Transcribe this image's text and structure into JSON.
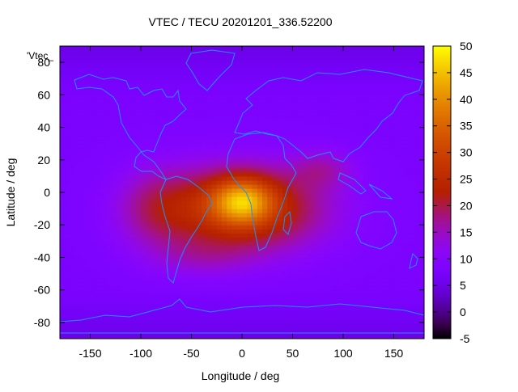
{
  "chart_data": {
    "type": "heatmap",
    "title": "VTEC / TECU 20201201_336.52200",
    "xlabel": "Longitude / deg",
    "ylabel": "Latitude / deg",
    "series_key": "'Vtec_",
    "xlim": [
      -180,
      180
    ],
    "ylim": [
      -90,
      90
    ],
    "x_ticks": [
      -150,
      -100,
      -50,
      0,
      50,
      100,
      150
    ],
    "y_ticks": [
      80,
      60,
      40,
      20,
      0,
      -20,
      -40,
      -60,
      -80
    ],
    "colorbar": {
      "range": [
        -5,
        50
      ],
      "ticks": [
        50,
        45,
        40,
        35,
        30,
        25,
        20,
        15,
        10,
        5,
        0,
        -5
      ],
      "colormap": "gnuplot-pm3d-default (black-blue-purple-red-orange-yellow)"
    },
    "field_summary": {
      "background_level": 8,
      "peak": {
        "lon": 0,
        "lat": -5,
        "value": 50
      },
      "enhanced_region": {
        "lon_range": [
          -120,
          130
        ],
        "lat_range": [
          -55,
          25
        ],
        "typical_value": 30
      },
      "polar_values": 5
    }
  },
  "colors": {
    "background": "#ffffff",
    "coastline": "#1e90ff",
    "axis": "#000000"
  }
}
